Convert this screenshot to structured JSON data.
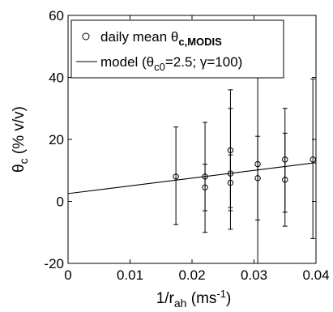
{
  "chart_data": {
    "type": "scatter",
    "title": "",
    "xlabel": {
      "main": "1/r",
      "sub": "ah",
      "unit_pre": " (ms",
      "sup": "-1",
      "unit_post": ")"
    },
    "ylabel": {
      "main": "θ",
      "sub": "c",
      "unit": " (% v/v)"
    },
    "xlim": [
      0,
      0.04
    ],
    "ylim": [
      -20,
      60
    ],
    "xticks": [
      0,
      0.01,
      0.02,
      0.03,
      0.04
    ],
    "xtick_labels": [
      "0",
      "0.01",
      "0.02",
      "0.03",
      "0.04"
    ],
    "yticks": [
      -20,
      0,
      20,
      40,
      60
    ],
    "ytick_labels": [
      "-20",
      "0",
      "20",
      "40",
      "60"
    ],
    "grid": false,
    "legend_position": "top-left",
    "series": [
      {
        "name": "daily mean θc,MODIS",
        "marker": "circle",
        "points": [
          {
            "x": 0.0174,
            "y": 8.0,
            "low": -7.5,
            "high": 24.0
          },
          {
            "x": 0.0221,
            "y": 8.0,
            "low": -10.0,
            "high": 25.5
          },
          {
            "x": 0.0221,
            "y": 4.5,
            "low": -3.0,
            "high": 12.0
          },
          {
            "x": 0.0262,
            "y": 16.5,
            "low": -2.0,
            "high": 36.0
          },
          {
            "x": 0.0262,
            "y": 9.0,
            "low": -9.0,
            "high": 30.0
          },
          {
            "x": 0.0262,
            "y": 6.0,
            "low": -3.0,
            "high": 15.0
          },
          {
            "x": 0.0306,
            "y": 12.0,
            "low": -20.0,
            "high": 49.0
          },
          {
            "x": 0.0306,
            "y": 7.5,
            "low": -6.0,
            "high": 21.0
          },
          {
            "x": 0.035,
            "y": 13.5,
            "low": -3.5,
            "high": 30.0
          },
          {
            "x": 0.035,
            "y": 7.0,
            "low": -8.0,
            "high": 22.0
          },
          {
            "x": 0.0395,
            "y": 13.5,
            "low": -12.0,
            "high": 39.5
          }
        ]
      },
      {
        "name": "model (θc0=2.5; γ=100)",
        "type": "line",
        "x": [
          0,
          0.04
        ],
        "y": [
          2.5,
          12.5
        ]
      }
    ],
    "legend": {
      "entry1": {
        "prefix": "daily mean θ",
        "sub": "c,MODIS"
      },
      "entry2": {
        "prefix": "model (θ",
        "sub": "c0",
        "suffix": "=2.5; γ=100)"
      }
    }
  }
}
